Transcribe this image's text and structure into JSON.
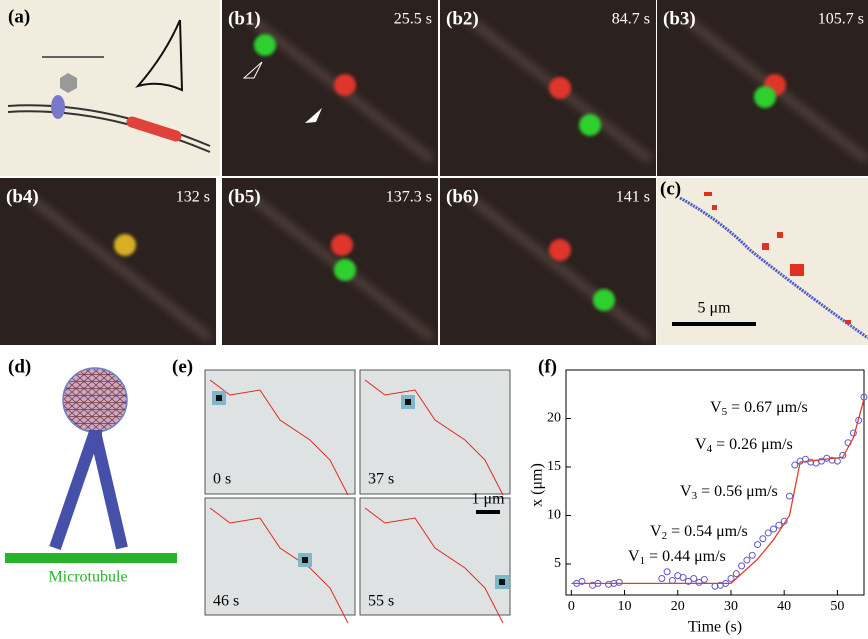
{
  "panels": {
    "a": "(a)",
    "b1": {
      "label": "(b1)",
      "time": "25.5 s"
    },
    "b2": {
      "label": "(b2)",
      "time": "84.7 s"
    },
    "b3": {
      "label": "(b3)",
      "time": "105.7 s"
    },
    "b4": {
      "label": "(b4)",
      "time": "132 s"
    },
    "b5": {
      "label": "(b5)",
      "time": "137.3 s"
    },
    "b6": {
      "label": "(b6)",
      "time": "141 s"
    },
    "c": {
      "label": "(c)",
      "scale": "5 μm"
    },
    "d": {
      "label": "(d)",
      "microtubule": "Microtubule"
    },
    "e": {
      "label": "(e)",
      "times": [
        "0 s",
        "37 s",
        "46 s",
        "55 s"
      ],
      "scale": "1 μm"
    }
  },
  "plot": {
    "label": "(f)",
    "xlabel": "Time (s)",
    "ylabel": "x (μm)",
    "xlim": [
      -1,
      55
    ],
    "ylim": [
      1.8,
      25
    ],
    "xticks": [
      0,
      10,
      20,
      30,
      40,
      50
    ],
    "yticks": [
      5,
      10,
      15,
      20
    ],
    "points": {
      "x": [
        1,
        2,
        4,
        5,
        7,
        8,
        9,
        17,
        18,
        19,
        20,
        21,
        22,
        23,
        24,
        25,
        27,
        28,
        29,
        30,
        31,
        32,
        33,
        34,
        35,
        36,
        37,
        38,
        39,
        40,
        41,
        42,
        43,
        44,
        45,
        46,
        47,
        48,
        49,
        50,
        51,
        52,
        53,
        54,
        55
      ],
      "y": [
        3,
        3.2,
        2.8,
        3,
        2.9,
        3,
        3.1,
        3.5,
        4.2,
        3.3,
        3.8,
        3.6,
        3.2,
        3.5,
        3.1,
        3.4,
        2.7,
        2.8,
        3.0,
        3.5,
        4.0,
        4.8,
        5.4,
        5.9,
        7.0,
        7.6,
        8.2,
        8.6,
        9.0,
        9.4,
        12,
        15.2,
        15.6,
        15.8,
        15.5,
        15.4,
        15.6,
        15.9,
        15.7,
        15.6,
        16.2,
        17.5,
        18.5,
        19.8,
        22.2
      ]
    },
    "fit": {
      "x": [
        0,
        30,
        35,
        38,
        41,
        43,
        51,
        53,
        55
      ],
      "y": [
        3,
        3,
        5.5,
        7.5,
        10,
        15.5,
        16,
        18,
        22
      ]
    },
    "annotations": [
      {
        "v": "V",
        "sub": "1",
        "text": " = 0.44 μm/s"
      },
      {
        "v": "V",
        "sub": "2",
        "text": " = 0.54 μm/s"
      },
      {
        "v": "V",
        "sub": "3",
        "text": " = 0.56 μm/s"
      },
      {
        "v": "V",
        "sub": "4",
        "text": " = 0.26 μm/s"
      },
      {
        "v": "V",
        "sub": "5",
        "text": " = 0.67 μm/s"
      }
    ]
  }
}
